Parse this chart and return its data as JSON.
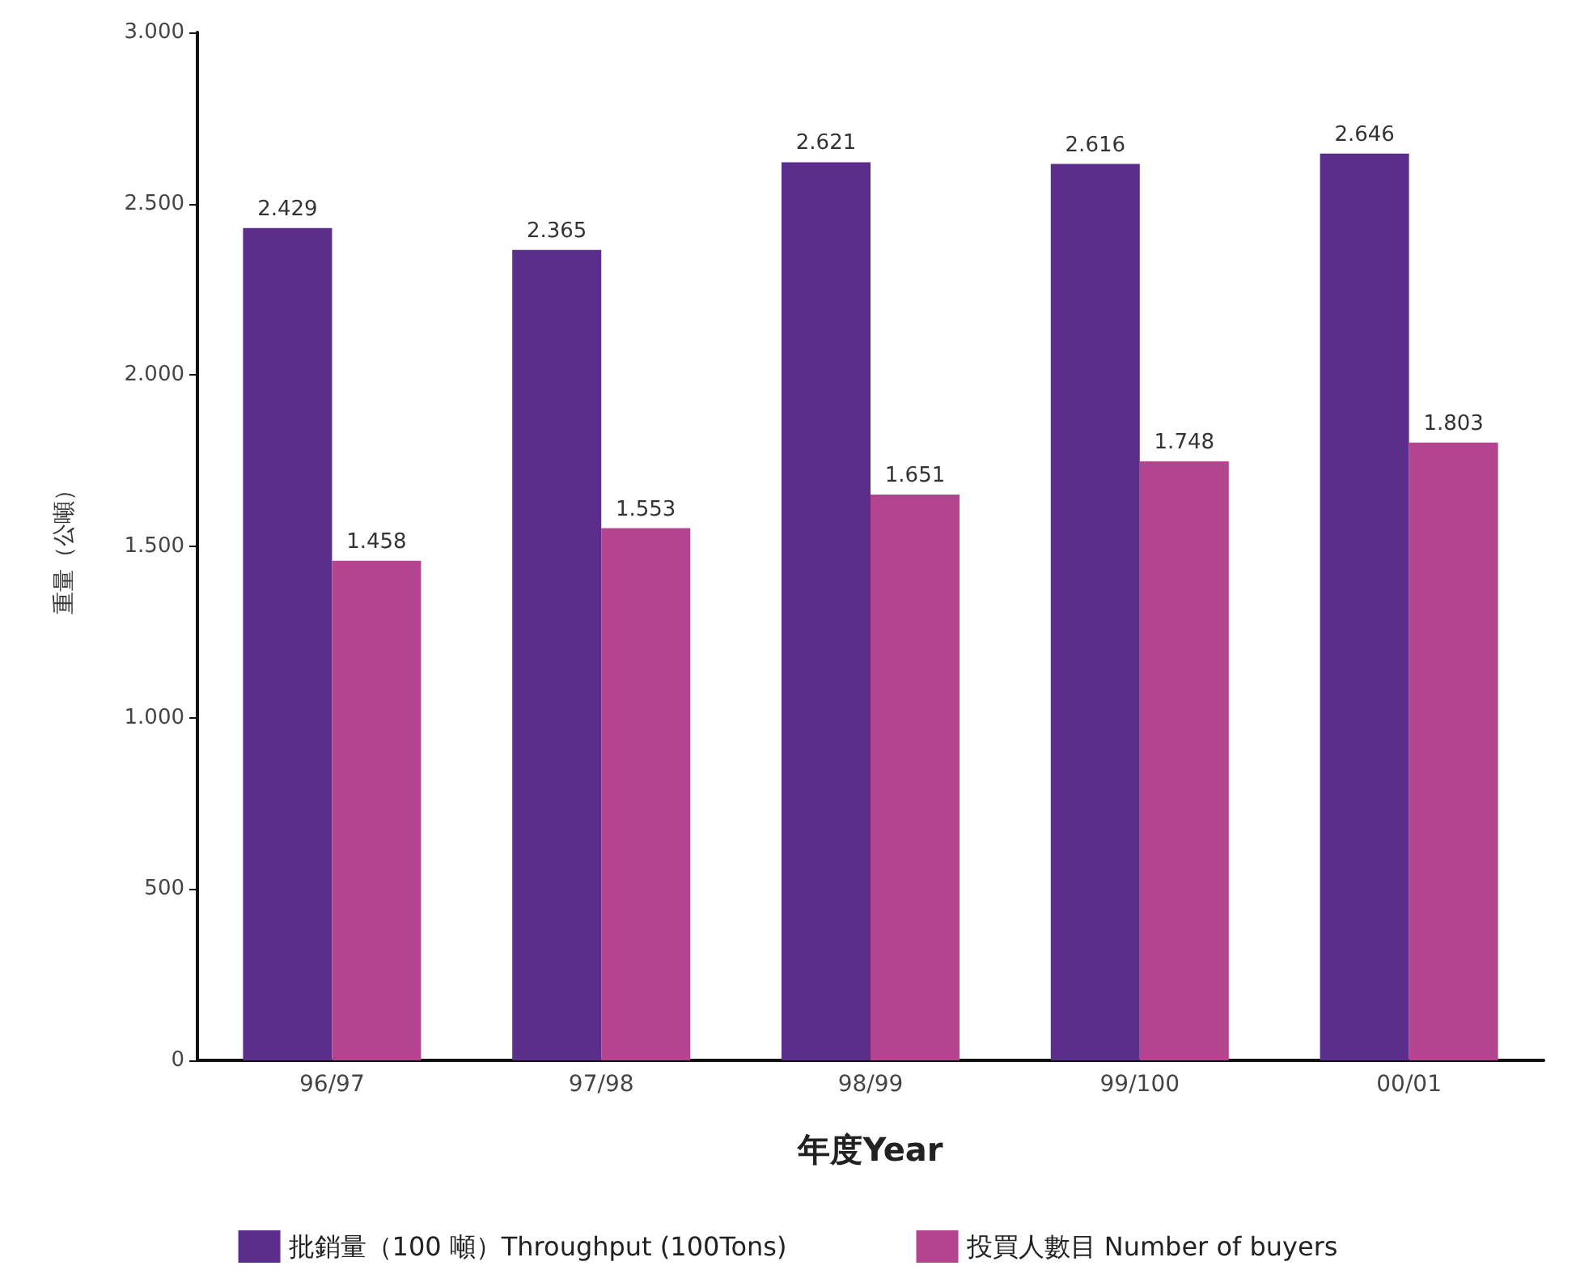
{
  "chart_data": {
    "type": "bar",
    "xlabel": "年度Year",
    "ylabel": "重量（公噸）",
    "categories": [
      "96/97",
      "97/98",
      "98/99",
      "99/100",
      "00/01"
    ],
    "series": [
      {
        "name": "批銷量（100 噸）Throughput (100Tons)",
        "color": "#5b2e8c",
        "values": [
          2429,
          2365,
          2621,
          2616,
          2646
        ],
        "value_labels": [
          "2.429",
          "2.365",
          "2.621",
          "2.616",
          "2.646"
        ]
      },
      {
        "name": "投買人數目 Number of buyers",
        "color": "#b4448f",
        "values": [
          1458,
          1553,
          1651,
          1748,
          1803
        ],
        "value_labels": [
          "1.458",
          "1.553",
          "1.651",
          "1.748",
          "1.803"
        ]
      }
    ],
    "ylim": [
      0,
      3000
    ],
    "yticks": [
      0,
      500,
      {
        "value": 1000,
        "label": "1.000"
      },
      {
        "value": 1500,
        "label": "1.500"
      },
      {
        "value": 2000,
        "label": "2.000"
      },
      {
        "value": 2500,
        "label": "2.500"
      },
      {
        "value": 3000,
        "label": "3.000"
      }
    ],
    "grid": false,
    "legend": "bottom"
  }
}
